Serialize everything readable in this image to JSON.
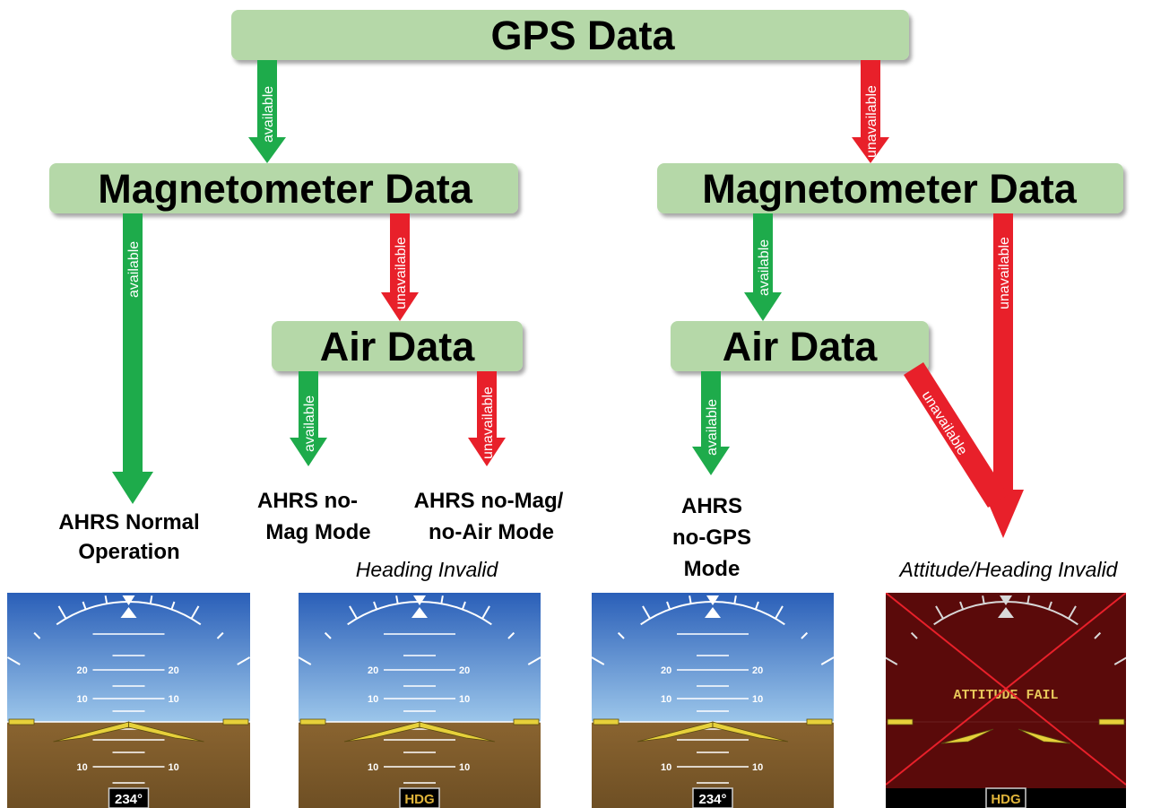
{
  "nodes": {
    "gps": "GPS Data",
    "mag_left": "Magnetometer Data",
    "mag_right": "Magnetometer Data",
    "air_left": "Air Data",
    "air_right": "Air Data"
  },
  "edge_labels": {
    "available": "available",
    "unavailable": "unavailable"
  },
  "modes": {
    "normal": [
      "AHRS Normal",
      "Operation"
    ],
    "no_mag": [
      "AHRS no-",
      "Mag Mode"
    ],
    "no_mag_no_air": [
      "AHRS no-Mag/",
      "no-Air Mode"
    ],
    "no_gps": [
      "AHRS",
      "no-GPS",
      "Mode"
    ]
  },
  "notes": {
    "heading_invalid": "Heading Invalid",
    "attitude_heading_invalid": "Attitude/Heading Invalid"
  },
  "displays": {
    "pitch_labels": [
      "20",
      "10",
      "10"
    ],
    "heading_readout": "234°",
    "heading_flag": "HDG",
    "attitude_fail": "ATTITUDE FAIL"
  },
  "colors": {
    "box_fill": "#b5d8a8",
    "available_arrow": "#1eab4b",
    "unavailable_arrow": "#e8202a",
    "sky": "#3a73c8",
    "ground": "#7d5a2c",
    "fail_bg": "#5a0a0a",
    "fail_cross": "#e8202a",
    "wing": "#e6d03a"
  }
}
